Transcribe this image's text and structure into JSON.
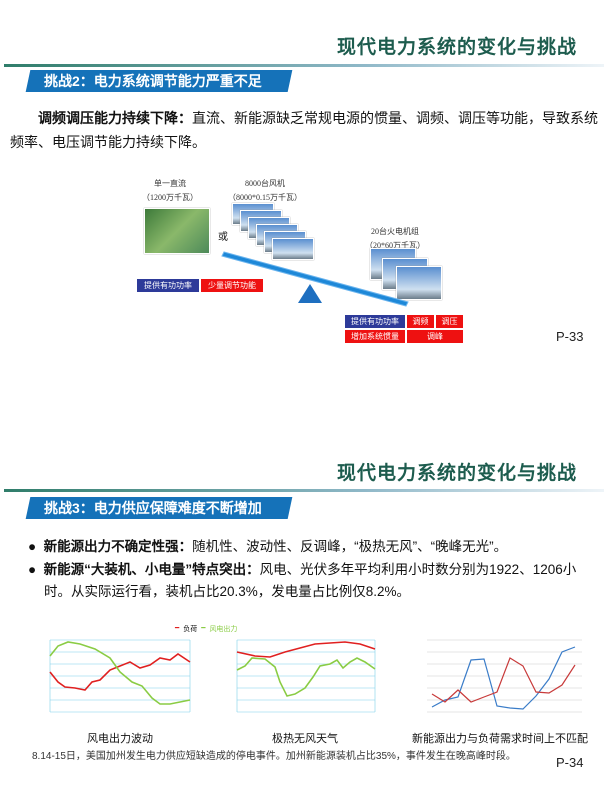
{
  "slide1": {
    "title": "现代电力系统的变化与挑战",
    "banner": "挑战2：电力系统调节能力严重不足",
    "para_bold": "调频调压能力持续下降：",
    "para_text": "直流、新能源缺乏常规电源的惯量、调频、调压等功能，导致系统频率、电压调节能力持续下降。",
    "diagram": {
      "dc_label": "单一直流",
      "dc_capacity": "（1200万千瓦）",
      "wind_label": "8000台风机",
      "wind_capacity": "（8000*0.15万千瓦）",
      "or": "或",
      "thermal_label": "20台火电机组",
      "thermal_capacity": "（20*60万千瓦）",
      "left_tags": [
        "提供有功功率",
        "少量调节功能"
      ],
      "right_tags": [
        "提供有功功率",
        "调频",
        "调压",
        "增加系统惯量",
        "调峰"
      ],
      "colors": {
        "blue": "#2d3a99",
        "red": "#ee1111",
        "beam": "#1e88d8"
      }
    },
    "page": "P-33"
  },
  "slide2": {
    "title": "现代电力系统的变化与挑战",
    "banner": "挑战3：电力供应保障难度不断增加",
    "bullets": [
      {
        "bold": "新能源出力不确定性强：",
        "text": "随机性、波动性、反调峰，“极热无风”、“晚峰无光”。"
      },
      {
        "bold": "新能源“大装机、小电量”特点突出：",
        "text": "风电、光伏多年平均利用小时数分别为1922、1206小时。从实际运行看，装机占比20.3%，发电量占比例仅8.2%。"
      }
    ],
    "legend": [
      "负荷",
      "风电出力"
    ],
    "captions": [
      "风电出力波动",
      "极热无风天气",
      "新能源出力与负荷需求时间上不匹配"
    ],
    "footnote": "8.14-15日，美国加州发生电力供应短缺造成的停电事件。加州新能源装机占比35%，事件发生在晚高峰时段。",
    "page": "P-34"
  }
}
